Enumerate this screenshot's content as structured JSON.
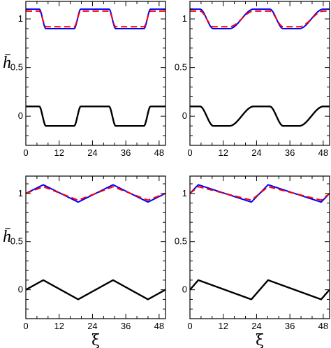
{
  "chart_data": [
    {
      "type": "line",
      "panel": "top-left",
      "profile": "smoothed-square",
      "x_ticks": [
        "0",
        "12",
        "24",
        "36",
        "48"
      ],
      "y_ticks": [
        "0",
        "0.5",
        "1"
      ],
      "xlim": [
        0,
        50.3
      ],
      "ylim": [
        -0.3,
        1.18
      ],
      "ylabel": "h̄",
      "xlabel": "",
      "series": [
        {
          "color": "#0000ff",
          "style": "solid",
          "role": "upper",
          "mean": 1.0,
          "amp": 0.1,
          "phase_shift": 0
        },
        {
          "color": "#ff0000",
          "style": "dashed",
          "role": "upper",
          "mean": 1.0,
          "amp": 0.08,
          "phase_shift": 0
        },
        {
          "color": "#000000",
          "style": "solid",
          "role": "lower",
          "mean": 0.0,
          "amp": 0.1,
          "phase_shift": 0
        }
      ],
      "wave": {
        "period": 25.13,
        "start": 0,
        "edge_width": 1.2
      }
    },
    {
      "type": "line",
      "panel": "top-right",
      "profile": "smoothed-square",
      "x_ticks": [
        "0",
        "12",
        "24",
        "36",
        "48"
      ],
      "y_ticks": [
        "0",
        "0.5",
        "1"
      ],
      "xlim": [
        0,
        50.3
      ],
      "ylim": [
        -0.3,
        1.18
      ],
      "ylabel": "h̄",
      "xlabel": "",
      "series": [
        {
          "color": "#0000ff",
          "style": "solid",
          "role": "upper",
          "mean": 1.0,
          "amp": 0.1,
          "phase_shift": 0
        },
        {
          "color": "#ff0000",
          "style": "dashed",
          "role": "upper",
          "mean": 1.0,
          "amp": 0.08,
          "phase_shift": 0
        },
        {
          "color": "#000000",
          "style": "solid",
          "role": "lower",
          "mean": 0.0,
          "amp": 0.1,
          "phase_shift": 0
        }
      ],
      "wave": {
        "period": 25.13,
        "start": 0,
        "edge_width": 2.4,
        "asymmetric": true
      }
    },
    {
      "type": "line",
      "panel": "bottom-left",
      "profile": "triangle",
      "x_ticks": [
        "0",
        "12",
        "24",
        "36",
        "48"
      ],
      "y_ticks": [
        "0",
        "0.5",
        "1"
      ],
      "xlim": [
        0,
        50.3
      ],
      "ylim": [
        -0.3,
        1.18
      ],
      "ylabel": "h̄",
      "xlabel": "ξ",
      "series": [
        {
          "color": "#0000ff",
          "style": "solid",
          "role": "upper",
          "mean": 1.0,
          "amp": 0.09
        },
        {
          "color": "#ff0000",
          "style": "dashed",
          "role": "upper",
          "mean": 1.0,
          "amp": 0.07
        },
        {
          "color": "#000000",
          "style": "solid",
          "role": "lower",
          "mean": 0.0,
          "amp": 0.1
        }
      ],
      "wave": {
        "period": 25.13,
        "peak_frac": 0.25
      }
    },
    {
      "type": "line",
      "panel": "bottom-right",
      "profile": "sawtooth",
      "x_ticks": [
        "0",
        "12",
        "24",
        "36",
        "48"
      ],
      "y_ticks": [
        "0",
        "0.5",
        "1"
      ],
      "xlim": [
        0,
        50.3
      ],
      "ylim": [
        -0.3,
        1.18
      ],
      "ylabel": "h̄",
      "xlabel": "ξ",
      "series": [
        {
          "color": "#0000ff",
          "style": "solid",
          "role": "upper",
          "mean": 1.0,
          "amp": 0.09
        },
        {
          "color": "#ff0000",
          "style": "dashed",
          "role": "upper",
          "mean": 1.0,
          "amp": 0.07
        },
        {
          "color": "#000000",
          "style": "solid",
          "role": "lower",
          "mean": 0.0,
          "amp": 0.1
        }
      ],
      "wave": {
        "period": 25.13,
        "peak_frac": 0.12
      }
    }
  ]
}
